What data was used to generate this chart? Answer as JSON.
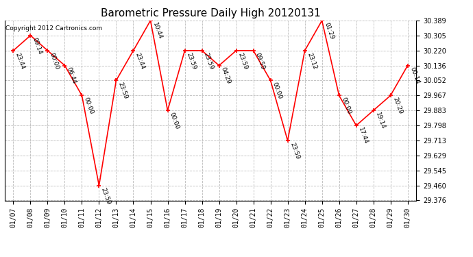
{
  "title": "Barometric Pressure Daily High 20120131",
  "copyright": "Copyright 2012 Cartronics.com",
  "x_labels": [
    "01/07",
    "01/08",
    "01/09",
    "01/10",
    "01/11",
    "01/12",
    "01/13",
    "01/14",
    "01/15",
    "01/16",
    "01/17",
    "01/18",
    "01/19",
    "01/20",
    "01/21",
    "01/22",
    "01/23",
    "01/24",
    "01/25",
    "01/26",
    "01/27",
    "01/28",
    "01/29",
    "01/30"
  ],
  "x_indices": [
    0,
    1,
    2,
    3,
    4,
    5,
    6,
    7,
    8,
    9,
    10,
    11,
    12,
    13,
    14,
    15,
    16,
    17,
    18,
    19,
    20,
    21,
    22,
    23
  ],
  "y_values": [
    30.22,
    30.305,
    30.22,
    30.136,
    29.967,
    29.46,
    30.052,
    30.22,
    30.389,
    29.883,
    30.22,
    30.22,
    30.136,
    30.22,
    30.22,
    30.052,
    29.713,
    30.22,
    30.389,
    29.967,
    29.798,
    29.883,
    29.967,
    30.136
  ],
  "point_labels": [
    "23:44",
    "09:14",
    "00:00",
    "06:44",
    "00:00",
    "23:59",
    "23:59",
    "23:44",
    "10:44",
    "00:00",
    "23:59",
    "23:59",
    "04:29",
    "23:59",
    "09:59",
    "00:00",
    "23:59",
    "23:12",
    "01:29",
    "00:00",
    "17:44",
    "19:14",
    "20:29",
    "00:14"
  ],
  "ylim_min": 29.376,
  "ylim_max": 30.389,
  "yticks": [
    29.376,
    29.46,
    29.545,
    29.629,
    29.713,
    29.798,
    29.883,
    29.967,
    30.052,
    30.136,
    30.22,
    30.305,
    30.389
  ],
  "line_color": "red",
  "marker_color": "red",
  "bg_color": "white",
  "grid_color": "#bbbbbb",
  "title_fontsize": 11,
  "label_fontsize": 6.5,
  "tick_fontsize": 7,
  "copyright_fontsize": 6.5
}
